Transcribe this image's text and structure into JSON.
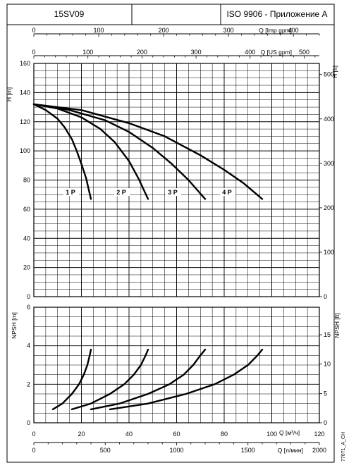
{
  "header": {
    "model": "15SV09",
    "standard": "ISO 9906 - Приложение A"
  },
  "side_code": "77071_A_CH",
  "chart_data": [
    {
      "type": "line",
      "xlabel": "Q [м³/ч]",
      "ylabel": "H [m]",
      "ylabel_right": "H [ft]",
      "xlim": [
        0,
        120
      ],
      "ylim": [
        0,
        160
      ],
      "ylim_right": [
        0,
        524.9
      ],
      "x_ticks": [
        0,
        20,
        40,
        60,
        80,
        100,
        120
      ],
      "y_ticks": [
        0,
        20,
        40,
        60,
        80,
        100,
        120,
        140,
        160
      ],
      "y_ticks_right": [
        0,
        100,
        200,
        300,
        400,
        500
      ],
      "grid": true,
      "top_axes": [
        {
          "label": "Q [Imp gpm]",
          "ticks": [
            0,
            100,
            200,
            300,
            400
          ],
          "max": 440
        },
        {
          "label": "Q [US gpm]",
          "ticks": [
            0,
            100,
            200,
            300,
            400,
            500
          ],
          "max": 528
        }
      ],
      "series": [
        {
          "name": "1 P",
          "x": [
            0,
            5,
            10,
            13,
            16,
            18,
            20,
            22,
            23,
            24
          ],
          "y": [
            132,
            128,
            122,
            116,
            108,
            100,
            91,
            81,
            74,
            67
          ]
        },
        {
          "name": "2 P",
          "x": [
            0,
            10,
            20,
            28,
            34,
            40,
            44,
            48
          ],
          "y": [
            132,
            129,
            123,
            115,
            106,
            93,
            81,
            67
          ]
        },
        {
          "name": "3 P",
          "x": [
            0,
            15,
            30,
            40,
            50,
            58,
            65,
            72
          ],
          "y": [
            132,
            128,
            121,
            113,
            102,
            91,
            80,
            67
          ]
        },
        {
          "name": "4 P",
          "x": [
            0,
            20,
            40,
            55,
            70,
            80,
            88,
            96
          ],
          "y": [
            132,
            128,
            119,
            110,
            97,
            87,
            78,
            67
          ]
        }
      ]
    },
    {
      "type": "line",
      "xlabel": "Q [м³/ч]",
      "xlabel_bottom": "Q [л/мин]",
      "ylabel": "NPSH [m]",
      "ylabel_right": "NPSH [ft]",
      "xlim": [
        0,
        120
      ],
      "ylim": [
        0,
        6
      ],
      "ylim_right": [
        0,
        19.685
      ],
      "x_ticks": [
        0,
        20,
        40,
        60,
        80,
        100,
        120
      ],
      "y_ticks": [
        0,
        2,
        4,
        6
      ],
      "y_ticks_right": [
        0,
        5,
        10,
        15
      ],
      "bottom_axis_ticks": [
        0,
        500,
        1000,
        1500,
        2000
      ],
      "bottom_axis_max": 2000,
      "grid": true,
      "series": [
        {
          "x": [
            8,
            12,
            16,
            19,
            21,
            22.5,
            23.5,
            24
          ],
          "y": [
            0.7,
            1.0,
            1.5,
            2.0,
            2.5,
            3.0,
            3.5,
            3.8
          ]
        },
        {
          "x": [
            16,
            24,
            32,
            38,
            42,
            45,
            47,
            48
          ],
          "y": [
            0.7,
            1.0,
            1.5,
            2.0,
            2.5,
            3.0,
            3.5,
            3.8
          ]
        },
        {
          "x": [
            24,
            36,
            48,
            57,
            63,
            67,
            70,
            72
          ],
          "y": [
            0.7,
            1.0,
            1.5,
            2.0,
            2.5,
            3.0,
            3.5,
            3.8
          ]
        },
        {
          "x": [
            32,
            48,
            64,
            76,
            84,
            90,
            94,
            96
          ],
          "y": [
            0.7,
            1.0,
            1.5,
            2.0,
            2.5,
            3.0,
            3.5,
            3.8
          ]
        }
      ]
    }
  ]
}
